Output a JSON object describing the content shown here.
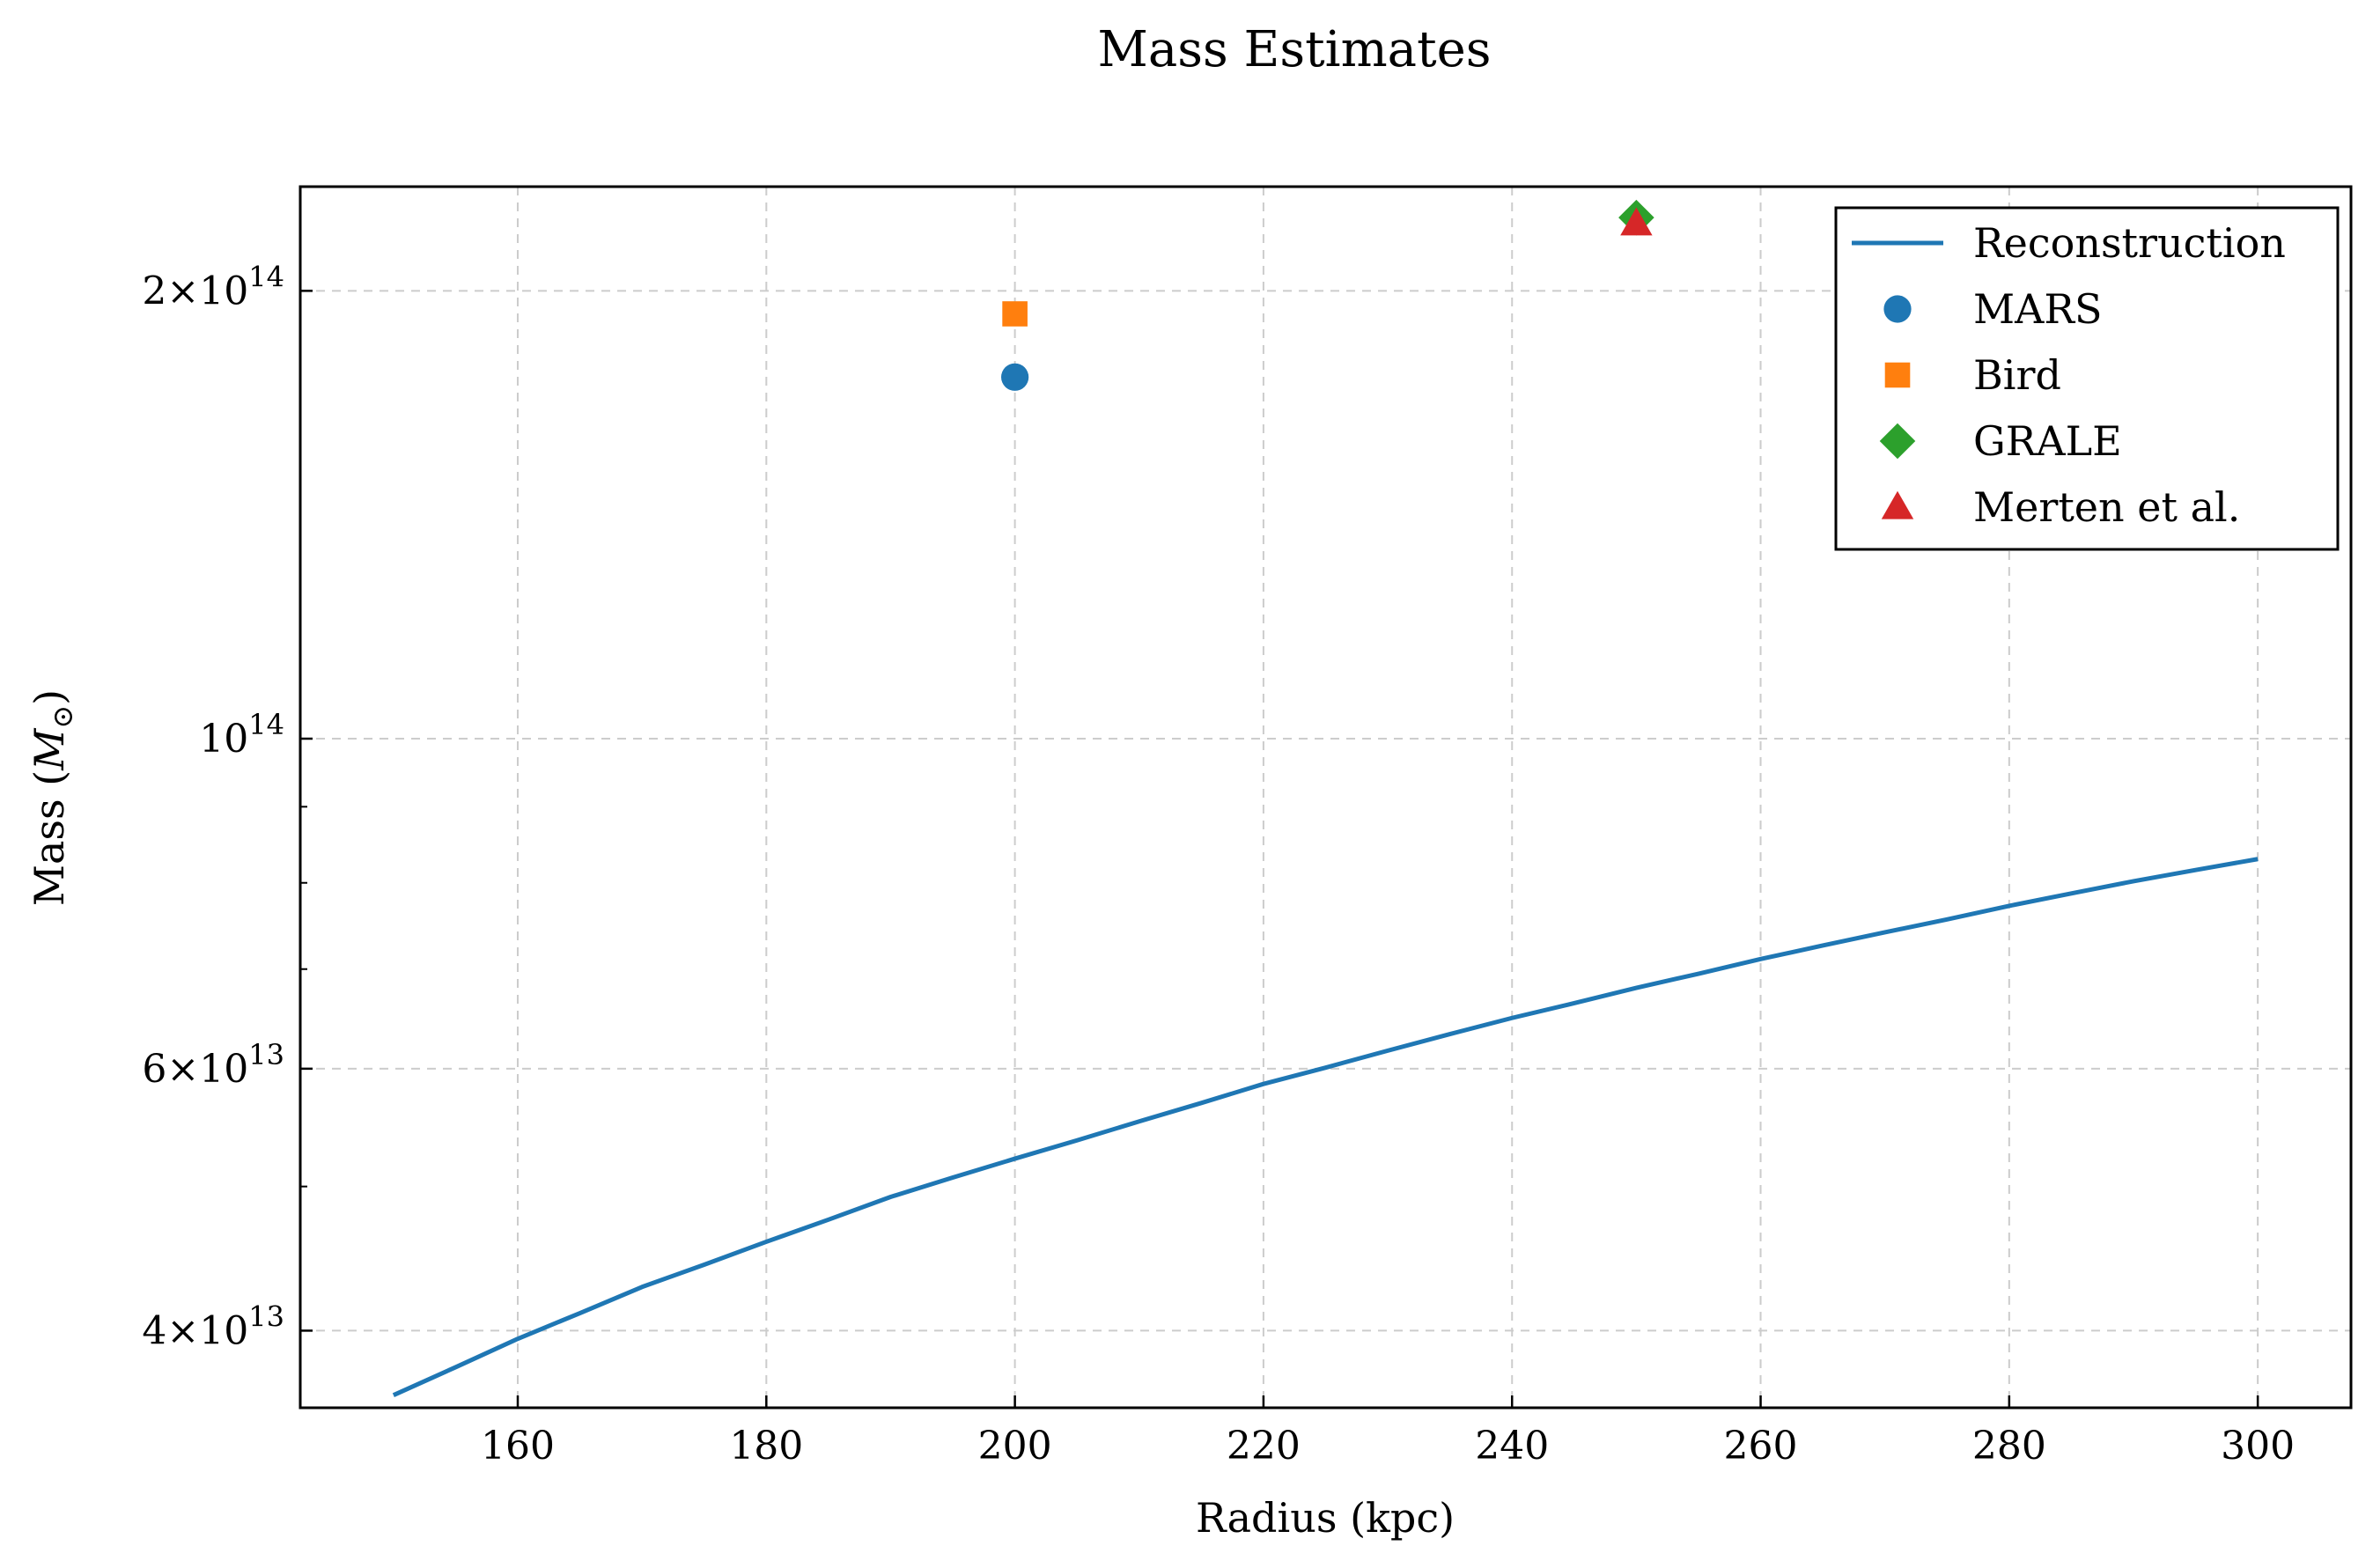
{
  "chart_data": {
    "type": "line",
    "title": "Mass Estimates",
    "xlabel": "Radius (kpc)",
    "ylabel": "Mass (M⊙)",
    "xlim": [
      142.5,
      307.5
    ],
    "ylim": [
      35500000000000.0,
      235000000000000.0
    ],
    "yscale": "log",
    "grid": true,
    "legend_position": "top-right",
    "x_ticks": [
      160,
      180,
      200,
      220,
      240,
      260,
      280,
      300
    ],
    "y_ticks": [
      {
        "value": 40000000000000.0,
        "mantissa": "4",
        "exponent": "13"
      },
      {
        "value": 60000000000000.0,
        "mantissa": "6",
        "exponent": "13"
      },
      {
        "value": 100000000000000.0,
        "mantissa": "",
        "exponent": "14"
      },
      {
        "value": 200000000000000.0,
        "mantissa": "2",
        "exponent": "14"
      }
    ],
    "y_minor_ticks": [
      50000000000000.0,
      70000000000000.0,
      80000000000000.0,
      90000000000000.0
    ],
    "series": [
      {
        "name": "Reconstruction",
        "kind": "line",
        "color": "#1f77b4",
        "x": [
          150,
          155,
          160,
          165,
          170,
          175,
          180,
          185,
          190,
          195,
          200,
          205,
          210,
          215,
          220,
          225,
          230,
          235,
          240,
          245,
          250,
          255,
          260,
          265,
          270,
          275,
          280,
          285,
          290,
          295,
          300
        ],
        "y": [
          36200000000000.0,
          37800000000000.0,
          39500000000000.0,
          41100000000000.0,
          42800000000000.0,
          44300000000000.0,
          45900000000000.0,
          47500000000000.0,
          49200000000000.0,
          50700000000000.0,
          52200000000000.0,
          53700000000000.0,
          55300000000000.0,
          56900000000000.0,
          58600000000000.0,
          60100000000000.0,
          61700000000000.0,
          63300000000000.0,
          64900000000000.0,
          66400000000000.0,
          68000000000000.0,
          69500000000000.0,
          71100000000000.0,
          72600000000000.0,
          74100000000000.0,
          75600000000000.0,
          77200000000000.0,
          78700000000000.0,
          80200000000000.0,
          81600000000000.0,
          83000000000000.0
        ]
      },
      {
        "name": "MARS",
        "kind": "scatter",
        "marker": "circle",
        "color": "#1f77b4",
        "x": [
          200
        ],
        "y": [
          175000000000000.0
        ]
      },
      {
        "name": "Bird",
        "kind": "scatter",
        "marker": "square",
        "color": "#ff7f0e",
        "x": [
          200
        ],
        "y": [
          193000000000000.0
        ]
      },
      {
        "name": "GRALE",
        "kind": "scatter",
        "marker": "diamond",
        "color": "#2ca02c",
        "x": [
          250
        ],
        "y": [
          224000000000000.0
        ]
      },
      {
        "name": "Merten et al.",
        "kind": "scatter",
        "marker": "triangle",
        "color": "#d62728",
        "x": [
          250
        ],
        "y": [
          222000000000000.0
        ]
      }
    ]
  }
}
